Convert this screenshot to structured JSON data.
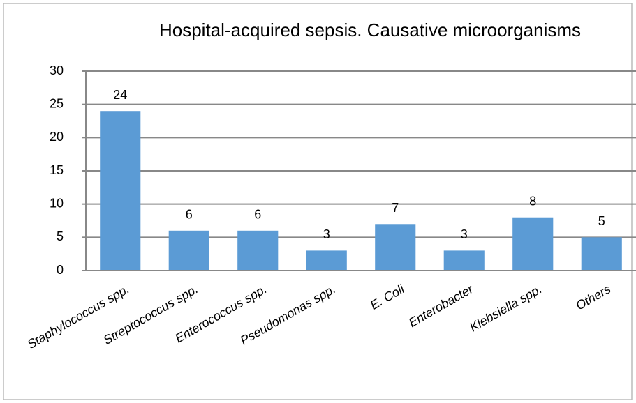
{
  "chart_data": {
    "type": "bar",
    "title": "Hospital-acquired sepsis. Causative microorganisms",
    "categories": [
      "Staphylococcus spp.",
      "Streptococcus spp.",
      "Enterococcus spp.",
      "Pseudomonas spp.",
      "E. Coli",
      "Enterobacter",
      "Klebsiella spp.",
      "Others"
    ],
    "values": [
      24,
      6,
      6,
      3,
      7,
      3,
      8,
      5
    ],
    "color": "#5b9bd5",
    "ylim": [
      0,
      30
    ],
    "yticks": [
      0,
      5,
      10,
      15,
      20,
      25,
      30
    ],
    "grid": true
  }
}
